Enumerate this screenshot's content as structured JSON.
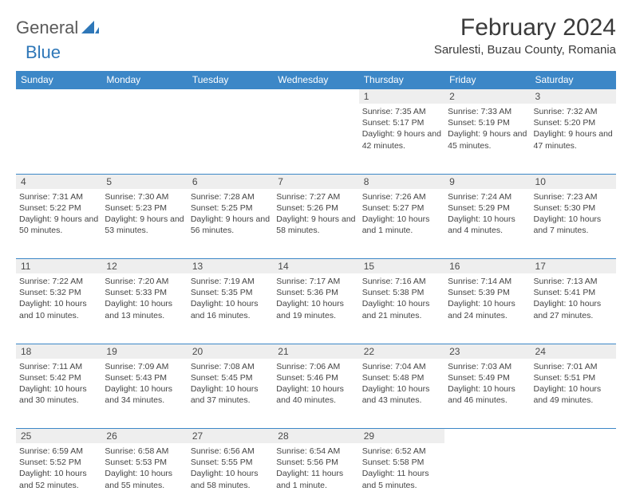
{
  "brand": {
    "word1": "General",
    "word2": "Blue"
  },
  "title": "February 2024",
  "location": "Sarulesti, Buzau County, Romania",
  "colors": {
    "header_bg": "#3c87c7",
    "header_text": "#ffffff",
    "daynum_bg": "#eeeeee",
    "border": "#3c87c7",
    "brand_blue": "#2e77b8",
    "text": "#333333"
  },
  "weekdays": [
    "Sunday",
    "Monday",
    "Tuesday",
    "Wednesday",
    "Thursday",
    "Friday",
    "Saturday"
  ],
  "weeks": [
    [
      null,
      null,
      null,
      null,
      {
        "n": "1",
        "sunrise": "7:35 AM",
        "sunset": "5:17 PM",
        "daylight": "9 hours and 42 minutes."
      },
      {
        "n": "2",
        "sunrise": "7:33 AM",
        "sunset": "5:19 PM",
        "daylight": "9 hours and 45 minutes."
      },
      {
        "n": "3",
        "sunrise": "7:32 AM",
        "sunset": "5:20 PM",
        "daylight": "9 hours and 47 minutes."
      }
    ],
    [
      {
        "n": "4",
        "sunrise": "7:31 AM",
        "sunset": "5:22 PM",
        "daylight": "9 hours and 50 minutes."
      },
      {
        "n": "5",
        "sunrise": "7:30 AM",
        "sunset": "5:23 PM",
        "daylight": "9 hours and 53 minutes."
      },
      {
        "n": "6",
        "sunrise": "7:28 AM",
        "sunset": "5:25 PM",
        "daylight": "9 hours and 56 minutes."
      },
      {
        "n": "7",
        "sunrise": "7:27 AM",
        "sunset": "5:26 PM",
        "daylight": "9 hours and 58 minutes."
      },
      {
        "n": "8",
        "sunrise": "7:26 AM",
        "sunset": "5:27 PM",
        "daylight": "10 hours and 1 minute."
      },
      {
        "n": "9",
        "sunrise": "7:24 AM",
        "sunset": "5:29 PM",
        "daylight": "10 hours and 4 minutes."
      },
      {
        "n": "10",
        "sunrise": "7:23 AM",
        "sunset": "5:30 PM",
        "daylight": "10 hours and 7 minutes."
      }
    ],
    [
      {
        "n": "11",
        "sunrise": "7:22 AM",
        "sunset": "5:32 PM",
        "daylight": "10 hours and 10 minutes."
      },
      {
        "n": "12",
        "sunrise": "7:20 AM",
        "sunset": "5:33 PM",
        "daylight": "10 hours and 13 minutes."
      },
      {
        "n": "13",
        "sunrise": "7:19 AM",
        "sunset": "5:35 PM",
        "daylight": "10 hours and 16 minutes."
      },
      {
        "n": "14",
        "sunrise": "7:17 AM",
        "sunset": "5:36 PM",
        "daylight": "10 hours and 19 minutes."
      },
      {
        "n": "15",
        "sunrise": "7:16 AM",
        "sunset": "5:38 PM",
        "daylight": "10 hours and 21 minutes."
      },
      {
        "n": "16",
        "sunrise": "7:14 AM",
        "sunset": "5:39 PM",
        "daylight": "10 hours and 24 minutes."
      },
      {
        "n": "17",
        "sunrise": "7:13 AM",
        "sunset": "5:41 PM",
        "daylight": "10 hours and 27 minutes."
      }
    ],
    [
      {
        "n": "18",
        "sunrise": "7:11 AM",
        "sunset": "5:42 PM",
        "daylight": "10 hours and 30 minutes."
      },
      {
        "n": "19",
        "sunrise": "7:09 AM",
        "sunset": "5:43 PM",
        "daylight": "10 hours and 34 minutes."
      },
      {
        "n": "20",
        "sunrise": "7:08 AM",
        "sunset": "5:45 PM",
        "daylight": "10 hours and 37 minutes."
      },
      {
        "n": "21",
        "sunrise": "7:06 AM",
        "sunset": "5:46 PM",
        "daylight": "10 hours and 40 minutes."
      },
      {
        "n": "22",
        "sunrise": "7:04 AM",
        "sunset": "5:48 PM",
        "daylight": "10 hours and 43 minutes."
      },
      {
        "n": "23",
        "sunrise": "7:03 AM",
        "sunset": "5:49 PM",
        "daylight": "10 hours and 46 minutes."
      },
      {
        "n": "24",
        "sunrise": "7:01 AM",
        "sunset": "5:51 PM",
        "daylight": "10 hours and 49 minutes."
      }
    ],
    [
      {
        "n": "25",
        "sunrise": "6:59 AM",
        "sunset": "5:52 PM",
        "daylight": "10 hours and 52 minutes."
      },
      {
        "n": "26",
        "sunrise": "6:58 AM",
        "sunset": "5:53 PM",
        "daylight": "10 hours and 55 minutes."
      },
      {
        "n": "27",
        "sunrise": "6:56 AM",
        "sunset": "5:55 PM",
        "daylight": "10 hours and 58 minutes."
      },
      {
        "n": "28",
        "sunrise": "6:54 AM",
        "sunset": "5:56 PM",
        "daylight": "11 hours and 1 minute."
      },
      {
        "n": "29",
        "sunrise": "6:52 AM",
        "sunset": "5:58 PM",
        "daylight": "11 hours and 5 minutes."
      },
      null,
      null
    ]
  ],
  "labels": {
    "sunrise": "Sunrise:",
    "sunset": "Sunset:",
    "daylight": "Daylight:"
  }
}
